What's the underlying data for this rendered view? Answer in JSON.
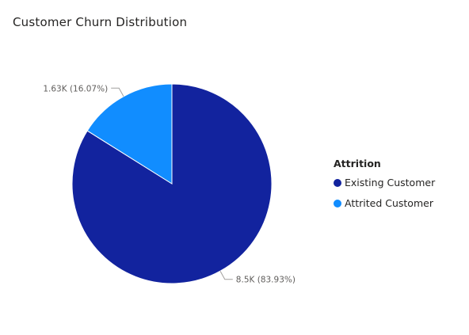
{
  "title": "Customer Churn Distribution",
  "legend": {
    "title": "Attrition",
    "items": [
      {
        "label": "Existing Customer",
        "color": "#12239e"
      },
      {
        "label": "Attrited Customer",
        "color": "#118dff"
      }
    ]
  },
  "chart_data": {
    "type": "pie",
    "title": "Customer Churn Distribution",
    "legend_title": "Attrition",
    "legend_position": "right",
    "slices": [
      {
        "name": "Existing Customer",
        "value": 8500,
        "percent": 83.93,
        "color": "#12239e",
        "label": "8.5K (83.93%)"
      },
      {
        "name": "Attrited Customer",
        "value": 1630,
        "percent": 16.07,
        "color": "#118dff",
        "label": "1.63K (16.07%)"
      }
    ]
  }
}
